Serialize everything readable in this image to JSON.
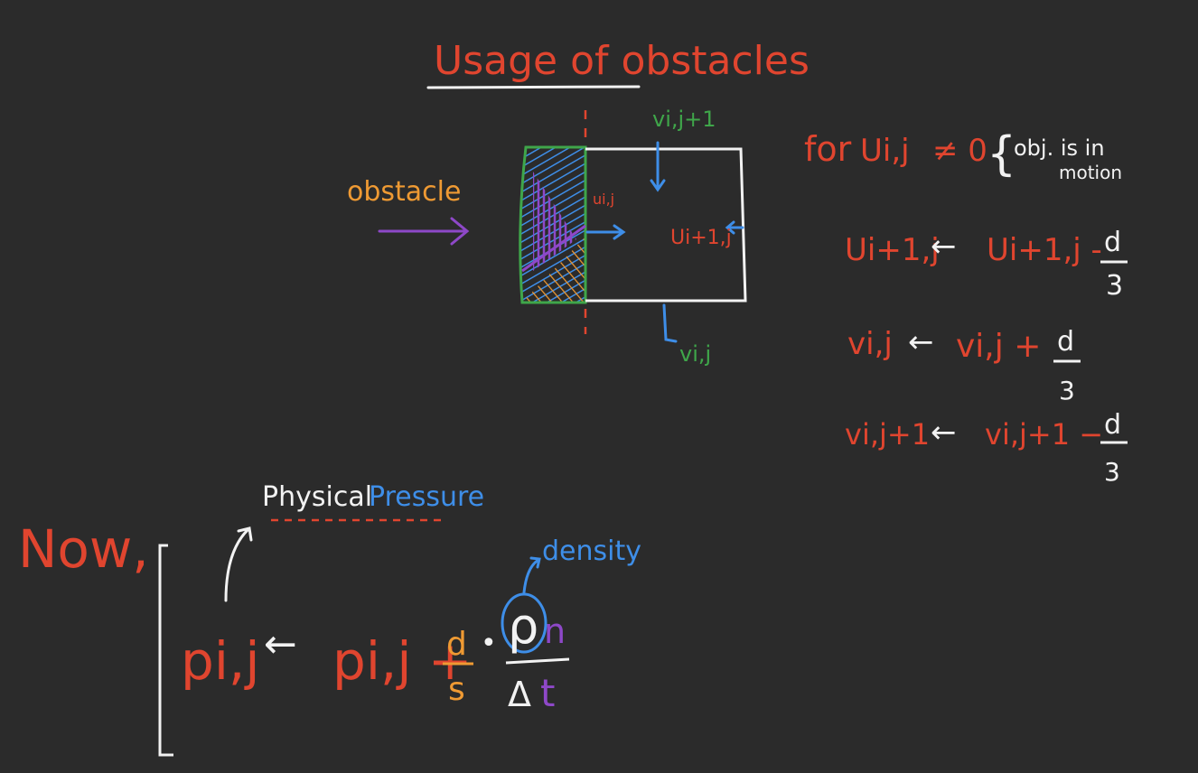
{
  "colors": {
    "background": "#2b2b2b",
    "red": "#e0452f",
    "white": "#f2f2f2",
    "green": "#3fa64a",
    "blue": "#3e8ee8",
    "orange": "#ef9a33",
    "purple": "#8e48c8"
  },
  "title": "Usage of obstacles",
  "cell": {
    "label_v_top": "vi,j+1",
    "label_v_bottom": "vi,j",
    "label_u_left": "ui,j",
    "label_u_right": "Ui+1,j"
  },
  "obstacle": {
    "label": "obstacle"
  },
  "equations": {
    "condition_prefix": "for",
    "condition_var": "Ui,j",
    "condition_op": "≠ 0",
    "condition_brace": "{",
    "condition_text_1": "obj. is in",
    "condition_text_2": "motion",
    "eq1_lhs": "Ui+1,j",
    "eq1_arrow": "←",
    "eq1_rhs": "Ui+1,j -",
    "eq1_num": "d",
    "eq1_den": "3",
    "eq2_lhs": "vi,j",
    "eq2_arrow": "←",
    "eq2_rhs": "vi,j +",
    "eq2_num": "d",
    "eq2_den": "3",
    "eq3_lhs": "vi,j+1",
    "eq3_arrow": "←",
    "eq3_rhs": "vi,j+1 −",
    "eq3_num": "d",
    "eq3_den": "3"
  },
  "pressure": {
    "now_label": "Now,",
    "physical": "Physical",
    "pressure_word": "Pressure",
    "density_label": "density",
    "lhs": "pi,j",
    "arrow": "←",
    "rhs": "pi,j +",
    "frac_num": "d",
    "frac_den": "s",
    "dot": "•",
    "rho": "ρ",
    "rho_sub": "n",
    "delta": "Δ",
    "t": "t"
  }
}
